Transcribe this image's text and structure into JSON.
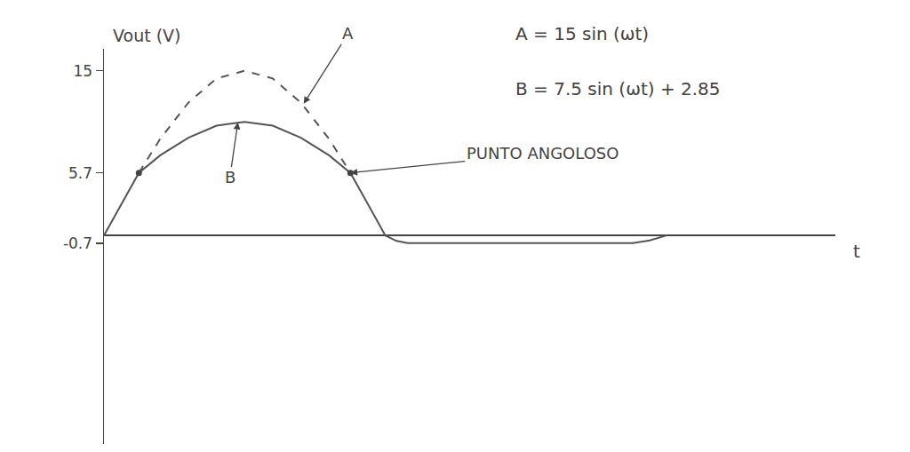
{
  "chart_data": {
    "type": "line",
    "y_label": "Vout (V)",
    "x_label": "t",
    "x": [
      0,
      0.5,
      1.24,
      2,
      3,
      4,
      5,
      6,
      7,
      8,
      8.76,
      9.2,
      9.6,
      10,
      10.4,
      10.8,
      12,
      14,
      16,
      18,
      18.8,
      19.4,
      20
    ],
    "series": [
      {
        "color": "#555555",
        "line_style": "solid",
        "values": [
          0,
          2.3,
          5.7,
          7.3,
          8.9,
          10.0,
          10.35,
          10.0,
          8.9,
          7.3,
          5.7,
          3.7,
          1.9,
          0,
          -0.5,
          -0.7,
          -0.7,
          -0.7,
          -0.7,
          -0.7,
          -0.7,
          -0.45,
          0
        ]
      },
      {
        "color": "#555555",
        "line_style": "dash",
        "x": [
          1.24,
          2,
          3,
          4,
          5,
          6,
          7,
          8,
          8.76
        ],
        "values": [
          5.7,
          8.8,
          12.1,
          14.3,
          15,
          14.3,
          12.1,
          8.8,
          5.7
        ]
      },
      {
        "color": "#444444",
        "type": "scatter",
        "marker": "circle",
        "values": [
          null,
          null,
          5.7,
          null,
          null,
          null,
          null,
          null,
          null,
          null,
          5.7,
          null,
          null,
          null,
          null,
          null,
          null,
          null,
          null,
          null,
          null,
          null,
          null
        ]
      }
    ],
    "xlim": [
      0,
      26
    ],
    "ylim": [
      -19,
      17
    ],
    "yticks": [
      15,
      5.7,
      -0.7
    ],
    "tick_labels": "y",
    "grid": false,
    "annotations": [
      {
        "text": "A",
        "x": 7.1,
        "y": 12.0
      },
      {
        "text": "B",
        "x": 4.76,
        "y": 10.3
      },
      {
        "text": "PUNTO ANGOLOSO",
        "x": 8.76,
        "y": 5.7
      }
    ],
    "formulas": [
      "A = 15 sin (ωt)",
      "B = 7.5 sin (ωt) + 2.85"
    ]
  }
}
